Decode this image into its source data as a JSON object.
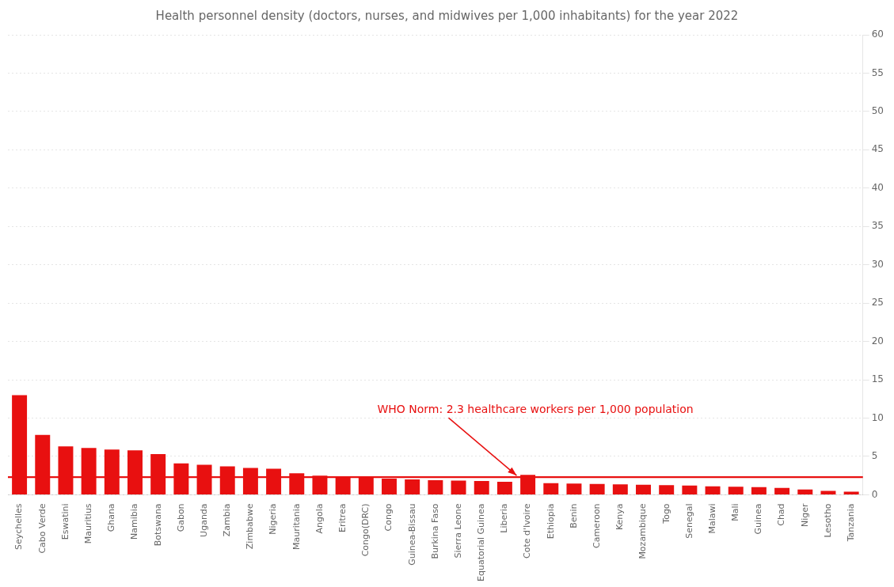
{
  "chart_data": {
    "type": "bar",
    "title": "Health personnel density (doctors, nurses, and midwives per 1,000 inhabitants) for the year 2022",
    "categories": [
      "Seychelles",
      "Cabo Verde",
      "Eswatini",
      "Mauritius",
      "Ghana",
      "Namibia",
      "Botswana",
      "Gabon",
      "Uganda",
      "Zambia",
      "Zimbabwe",
      "Nigeria",
      "Mauritania",
      "Angola",
      "Eritrea",
      "Congo(DRC)",
      "Congo",
      "Guinea-Bissau",
      "Burkina Faso",
      "Sierra Leone",
      "Equatorial Guinea",
      "Liberia",
      "Cote d'Ivoire",
      "Ethiopia",
      "Benin",
      "Cameroon",
      "Kenya",
      "Mozambique",
      "Togo",
      "Senegal",
      "Malawi",
      "Mali",
      "Guinea",
      "Chad",
      "Niger",
      "Lesotho",
      "Tanzania"
    ],
    "values": [
      13.0,
      7.8,
      6.3,
      6.1,
      5.9,
      5.8,
      5.3,
      4.1,
      3.9,
      3.7,
      3.5,
      3.4,
      2.8,
      2.5,
      2.3,
      2.2,
      2.1,
      2.0,
      1.9,
      1.85,
      1.8,
      1.7,
      2.6,
      1.5,
      1.45,
      1.4,
      1.35,
      1.3,
      1.25,
      1.2,
      1.1,
      1.05,
      1.0,
      0.9,
      0.7,
      0.5,
      0.4
    ],
    "color": "#E81010",
    "ylim": [
      0,
      60
    ],
    "yticks": [
      0,
      5,
      10,
      15,
      20,
      25,
      30,
      35,
      40,
      45,
      50,
      55,
      60
    ],
    "grid": true,
    "annotations": [
      {
        "text": "WHO Norm: 2.3 healthcare workers per 1,000 population",
        "y": 2.3,
        "color": "#E81010"
      }
    ]
  }
}
